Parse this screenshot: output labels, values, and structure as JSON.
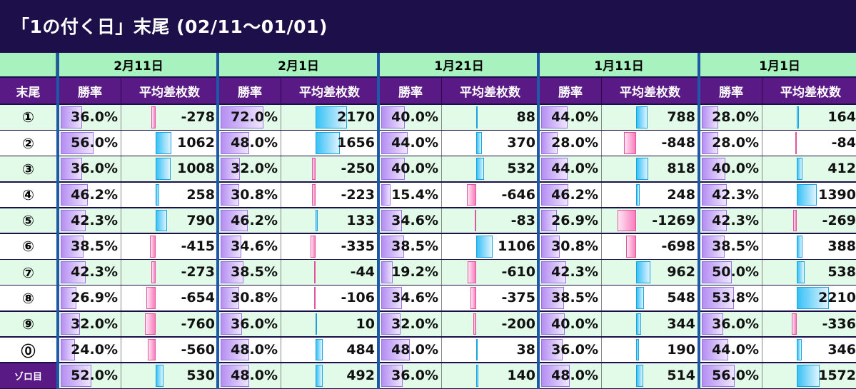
{
  "title": "「1の付く日」末尾 (02/11～01/01)",
  "row_header": "末尾",
  "col_labels": {
    "rate": "勝率",
    "avg": "平均差枚数"
  },
  "dates": [
    "2月11日",
    "2月1日",
    "1月21日",
    "1月11日",
    "1月1日"
  ],
  "rows": [
    {
      "label": "①",
      "rates": [
        "36.0%",
        "72.0%",
        "40.0%",
        "44.0%",
        "28.0%"
      ],
      "avgs": [
        -278,
        2170,
        88,
        788,
        164
      ]
    },
    {
      "label": "②",
      "rates": [
        "56.0%",
        "48.0%",
        "44.0%",
        "28.0%",
        "28.0%"
      ],
      "avgs": [
        1062,
        1656,
        370,
        -848,
        -84
      ]
    },
    {
      "label": "③",
      "rates": [
        "36.0%",
        "32.0%",
        "40.0%",
        "44.0%",
        "40.0%"
      ],
      "avgs": [
        1008,
        -250,
        532,
        818,
        412
      ]
    },
    {
      "label": "④",
      "rates": [
        "46.2%",
        "30.8%",
        "15.4%",
        "46.2%",
        "42.3%"
      ],
      "avgs": [
        258,
        -223,
        -646,
        248,
        1390
      ]
    },
    {
      "label": "⑤",
      "rates": [
        "42.3%",
        "46.2%",
        "34.6%",
        "26.9%",
        "42.3%"
      ],
      "avgs": [
        790,
        133,
        -83,
        -1269,
        -269
      ]
    },
    {
      "label": "⑥",
      "rates": [
        "38.5%",
        "34.6%",
        "38.5%",
        "30.8%",
        "38.5%"
      ],
      "avgs": [
        -415,
        -335,
        1106,
        -698,
        388
      ]
    },
    {
      "label": "⑦",
      "rates": [
        "42.3%",
        "38.5%",
        "19.2%",
        "42.3%",
        "50.0%"
      ],
      "avgs": [
        -273,
        -44,
        -610,
        962,
        538
      ]
    },
    {
      "label": "⑧",
      "rates": [
        "26.9%",
        "30.8%",
        "34.6%",
        "38.5%",
        "53.8%"
      ],
      "avgs": [
        -654,
        -106,
        -375,
        548,
        2210
      ]
    },
    {
      "label": "⑨",
      "rates": [
        "32.0%",
        "36.0%",
        "32.0%",
        "40.0%",
        "36.0%"
      ],
      "avgs": [
        -760,
        10,
        -200,
        344,
        -336
      ]
    },
    {
      "label": "⓪",
      "rates": [
        "24.0%",
        "48.0%",
        "48.0%",
        "36.0%",
        "44.0%"
      ],
      "avgs": [
        -560,
        484,
        38,
        190,
        346
      ]
    },
    {
      "label": "ゾロ目",
      "rates": [
        "52.0%",
        "48.0%",
        "36.0%",
        "48.0%",
        "56.0%"
      ],
      "avgs": [
        530,
        492,
        140,
        514,
        1572
      ]
    }
  ],
  "colors": {
    "background": "#1c0f4a",
    "date_header_bg": "#a8f2bf",
    "col_header_bg": "#5a1a86",
    "row_even_bg": "#e2fbe9",
    "row_odd_bg": "#ffffff",
    "separator": "#1e58a8"
  }
}
